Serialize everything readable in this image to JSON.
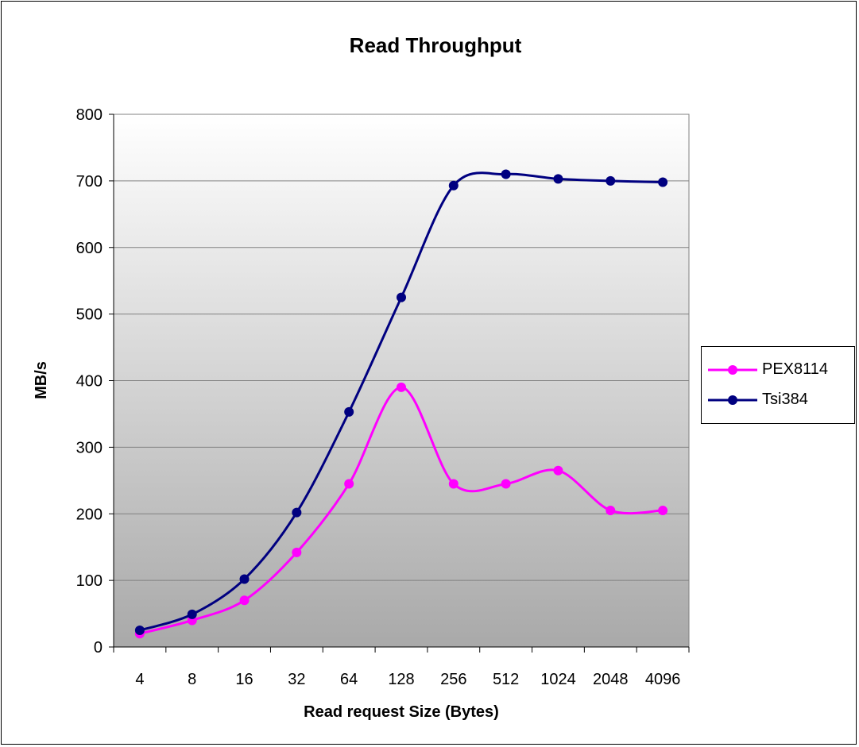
{
  "chart_data": {
    "type": "line",
    "title": "Read Throughput",
    "xlabel": "Read request Size (Bytes)",
    "ylabel": "MB/s",
    "categories": [
      "4",
      "8",
      "16",
      "32",
      "64",
      "128",
      "256",
      "512",
      "1024",
      "2048",
      "4096"
    ],
    "ylim": [
      0,
      800
    ],
    "yticks": [
      0,
      100,
      200,
      300,
      400,
      500,
      600,
      700,
      800
    ],
    "grid": true,
    "legend_position": "right",
    "series": [
      {
        "name": "PEX8114",
        "color": "#FF00FF",
        "values": [
          20,
          40,
          70,
          142,
          245,
          390,
          245,
          245,
          265,
          205,
          205
        ]
      },
      {
        "name": "Tsi384",
        "color": "#000080",
        "values": [
          25,
          49,
          102,
          202,
          353,
          525,
          693,
          710,
          703,
          700,
          698
        ]
      }
    ]
  }
}
